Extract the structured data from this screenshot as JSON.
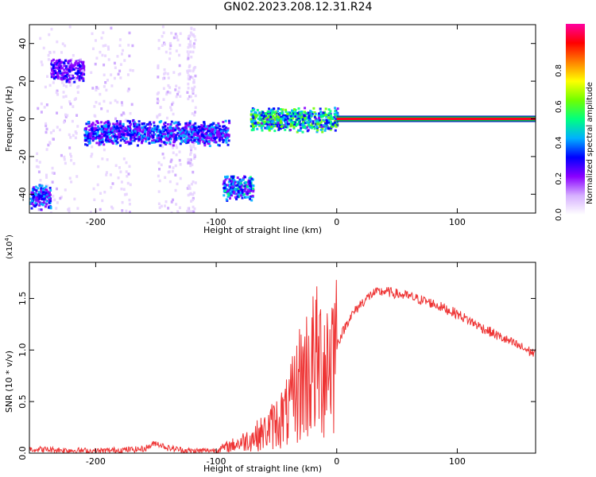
{
  "title": "GN02.2023.208.12.31.R24",
  "chart_data": [
    {
      "type": "heatmap",
      "xlabel": "Height of straight line (km)",
      "ylabel": "Frequency (Hz)",
      "xlim": [
        -255,
        165
      ],
      "ylim": [
        -50,
        50
      ],
      "xticks": [
        -200,
        -100,
        0,
        100
      ],
      "yticks": [
        -40,
        -20,
        0,
        20,
        40
      ],
      "colorbar": {
        "label": "Normalized spectral amplitude",
        "range": [
          0,
          1
        ],
        "ticks": [
          "0.0",
          "0.2",
          "0.4",
          "0.6",
          "0.8"
        ],
        "colors": [
          "#ffffff",
          "#d6b0ff",
          "#8a00ff",
          "#0000ff",
          "#00b0ff",
          "#00ff80",
          "#70ff00",
          "#ffff00",
          "#ff8000",
          "#ff0000",
          "#ff00a0"
        ]
      },
      "features": [
        {
          "x": [
            -255,
            -238
          ],
          "freq": -41,
          "level": 0.3
        },
        {
          "x": [
            -238,
            -210
          ],
          "freq": 26,
          "level": 0.25
        },
        {
          "x": [
            -210,
            -90
          ],
          "freq": -7,
          "level": 0.3
        },
        {
          "x": [
            -95,
            -70
          ],
          "freq": -36,
          "level": 0.35
        },
        {
          "x": [
            -72,
            0
          ],
          "freq": 0,
          "level": 0.45
        },
        {
          "x": [
            0,
            165
          ],
          "freq": 0,
          "level": 0.9
        }
      ]
    },
    {
      "type": "line",
      "xlabel": "Height of straight line (km)",
      "ylabel": "SNR (10 * v/v)",
      "y_multiplier": "(x10",
      "y_multiplier_exp": "4",
      "y_multiplier_close": ")",
      "xlim": [
        -255,
        165
      ],
      "ylim": [
        0,
        1.85
      ],
      "xticks": [
        -200,
        -100,
        0,
        100
      ],
      "yticks": [
        "0.0",
        "0.5",
        "1.0",
        "1.5"
      ],
      "line_color": "#ee3333",
      "x": [
        -255,
        -200,
        -160,
        -150,
        -140,
        -120,
        -100,
        -80,
        -60,
        -40,
        -30,
        -20,
        -10,
        0,
        10,
        20,
        30,
        40,
        60,
        80,
        100,
        120,
        140,
        165
      ],
      "y": [
        0.04,
        0.02,
        0.04,
        0.1,
        0.05,
        0.02,
        0.03,
        0.1,
        0.2,
        0.4,
        0.7,
        0.85,
        0.9,
        1.05,
        1.3,
        1.45,
        1.55,
        1.57,
        1.52,
        1.45,
        1.35,
        1.22,
        1.1,
        0.96
      ]
    }
  ]
}
